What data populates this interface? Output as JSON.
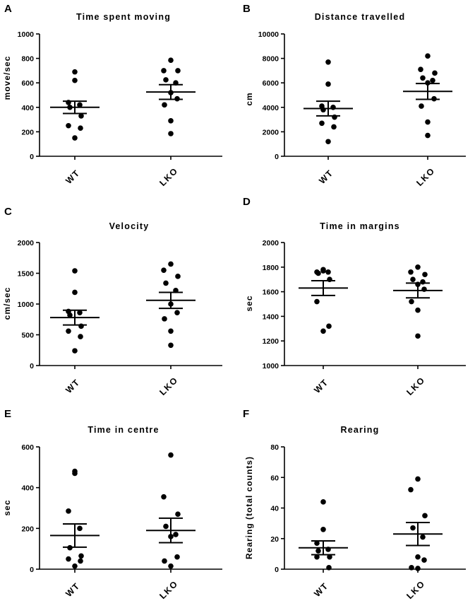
{
  "figure": {
    "colors": {
      "ink": "#000000",
      "background": "#ffffff"
    }
  },
  "chart_data": [
    {
      "panel": "A",
      "type": "scatter",
      "title": "Time spent moving",
      "xlabel": "",
      "ylabel": "move/sec",
      "categories": [
        "WT",
        "LKO"
      ],
      "ylim": [
        0,
        1000
      ],
      "yticks": [
        0,
        200,
        400,
        600,
        800,
        1000
      ],
      "series": [
        {
          "name": "WT",
          "points": [
            690,
            620,
            440,
            420,
            400,
            330,
            250,
            230,
            150
          ],
          "mean": 400,
          "sem_low": 350,
          "sem_high": 450
        },
        {
          "name": "LKO",
          "points": [
            785,
            700,
            700,
            625,
            600,
            520,
            470,
            420,
            290,
            185
          ],
          "mean": 525,
          "sem_low": 465,
          "sem_high": 585
        }
      ]
    },
    {
      "panel": "B",
      "type": "scatter",
      "title": "Distance travelled",
      "xlabel": "",
      "ylabel": "cm",
      "categories": [
        "WT",
        "LKO"
      ],
      "ylim": [
        0,
        10000
      ],
      "yticks": [
        0,
        2000,
        4000,
        6000,
        8000,
        10000
      ],
      "series": [
        {
          "name": "WT",
          "points": [
            7700,
            5900,
            4100,
            4000,
            3800,
            3200,
            2700,
            2400,
            1200
          ],
          "mean": 3900,
          "sem_low": 3300,
          "sem_high": 4500
        },
        {
          "name": "LKO",
          "points": [
            8200,
            7100,
            6800,
            6400,
            6200,
            6000,
            4700,
            4100,
            2800,
            1700
          ],
          "mean": 5300,
          "sem_low": 4650,
          "sem_high": 5950
        }
      ]
    },
    {
      "panel": "C",
      "type": "scatter",
      "title": "Velocity",
      "xlabel": "",
      "ylabel": "cm/sec",
      "categories": [
        "WT",
        "LKO"
      ],
      "ylim": [
        0,
        2000
      ],
      "yticks": [
        0,
        500,
        1000,
        1500,
        2000
      ],
      "series": [
        {
          "name": "WT",
          "points": [
            1540,
            1190,
            880,
            860,
            820,
            640,
            560,
            470,
            240
          ],
          "mean": 780,
          "sem_low": 660,
          "sem_high": 900
        },
        {
          "name": "LKO",
          "points": [
            1650,
            1550,
            1450,
            1340,
            1220,
            1000,
            860,
            760,
            560,
            330
          ],
          "mean": 1060,
          "sem_low": 930,
          "sem_high": 1190
        }
      ]
    },
    {
      "panel": "D",
      "type": "scatter",
      "title": "Time in margins",
      "xlabel": "",
      "ylabel": "sec",
      "categories": [
        "WT",
        "LKO"
      ],
      "ylim": [
        1000,
        2000
      ],
      "yticks": [
        1000,
        1200,
        1400,
        1600,
        1800,
        2000
      ],
      "series": [
        {
          "name": "WT",
          "points": [
            1780,
            1770,
            1760,
            1760,
            1750,
            1700,
            1520,
            1320,
            1280
          ],
          "mean": 1630,
          "sem_low": 1570,
          "sem_high": 1690
        },
        {
          "name": "LKO",
          "points": [
            1800,
            1760,
            1740,
            1700,
            1680,
            1660,
            1620,
            1520,
            1450,
            1240
          ],
          "mean": 1610,
          "sem_low": 1550,
          "sem_high": 1670
        }
      ]
    },
    {
      "panel": "E",
      "type": "scatter",
      "title": "Time in centre",
      "xlabel": "",
      "ylabel": "sec",
      "categories": [
        "WT",
        "LKO"
      ],
      "ylim": [
        0,
        600
      ],
      "yticks": [
        0,
        200,
        400,
        600
      ],
      "series": [
        {
          "name": "WT",
          "points": [
            480,
            470,
            285,
            200,
            105,
            65,
            50,
            40,
            15
          ],
          "mean": 165,
          "sem_low": 108,
          "sem_high": 222
        },
        {
          "name": "LKO",
          "points": [
            560,
            355,
            270,
            210,
            170,
            160,
            60,
            40,
            15
          ],
          "mean": 190,
          "sem_low": 130,
          "sem_high": 250
        }
      ]
    },
    {
      "panel": "F",
      "type": "scatter",
      "title": "Rearing",
      "xlabel": "",
      "ylabel": "Rearing (total counts)",
      "categories": [
        "WT",
        "LKO"
      ],
      "ylim": [
        0,
        80
      ],
      "yticks": [
        0,
        20,
        40,
        60,
        80
      ],
      "series": [
        {
          "name": "WT",
          "points": [
            44,
            26,
            17,
            13,
            12,
            8,
            8,
            1
          ],
          "mean": 14,
          "sem_low": 9.5,
          "sem_high": 18.5
        },
        {
          "name": "LKO",
          "points": [
            59,
            52,
            35,
            27,
            21,
            8,
            6,
            1,
            0.5
          ],
          "mean": 23,
          "sem_low": 15.5,
          "sem_high": 30.5
        }
      ]
    }
  ]
}
